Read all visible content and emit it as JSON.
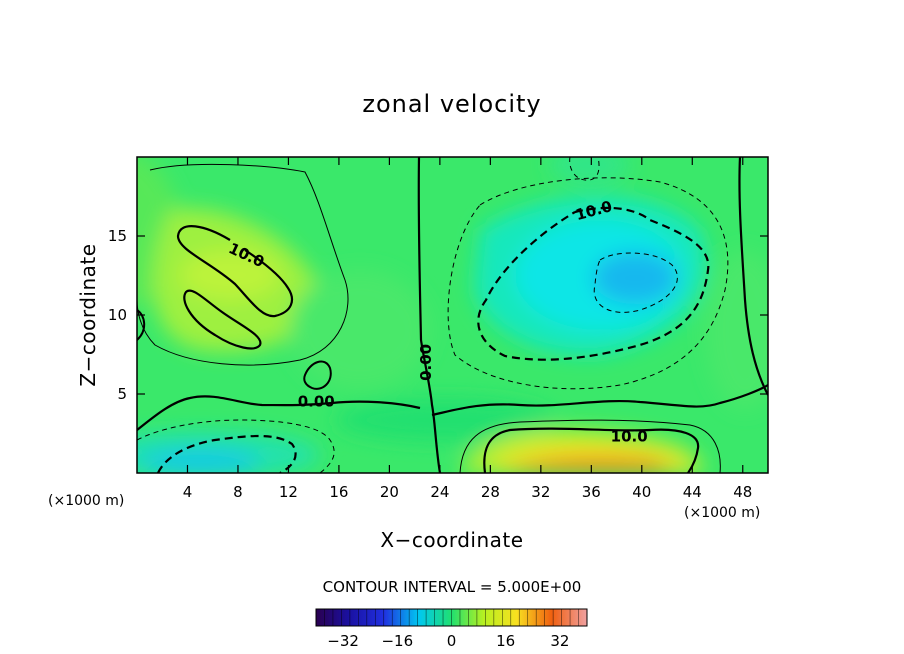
{
  "chart_data": {
    "type": "heatmap",
    "title": "zonal velocity",
    "xlabel": "X−coordinate",
    "ylabel": "Z−coordinate",
    "x_unit": "(×1000 m)",
    "y_unit": "(×1000 m)",
    "xlim": [
      0,
      50
    ],
    "ylim": [
      0,
      20
    ],
    "x_ticks": [
      4,
      8,
      12,
      16,
      20,
      24,
      28,
      32,
      36,
      40,
      44,
      48
    ],
    "y_ticks": [
      5,
      10,
      15
    ],
    "contour_interval_text": "CONTOUR INTERVAL = 5.000E+00",
    "colorbar": {
      "range": [
        -40,
        40
      ],
      "ticks": [
        {
          "value": -32,
          "label": "−32"
        },
        {
          "value": -16,
          "label": "−16"
        },
        {
          "value": 0,
          "label": "0"
        },
        {
          "value": 16,
          "label": "16"
        },
        {
          "value": 32,
          "label": "32"
        }
      ]
    },
    "contour_labels": [
      {
        "text": "10.0",
        "x": 8.5,
        "z": 13.5
      },
      {
        "text": "0.00",
        "x": 14.2,
        "z": 4.2
      },
      {
        "text": "0.00",
        "x": 23.3,
        "z": 7.0
      },
      {
        "text": "10.0",
        "x": 36.3,
        "z": 16.3
      },
      {
        "text": "10.0",
        "x": 39.0,
        "z": 2.0
      }
    ],
    "features": [
      {
        "name": "positive upper-left core",
        "x": 8,
        "z": 13.5,
        "value": 12
      },
      {
        "name": "negative upper-right core",
        "x": 39,
        "z": 12,
        "value": -20
      },
      {
        "name": "strong positive near surface",
        "x": 38,
        "z": 0.5,
        "value": 30
      },
      {
        "name": "negative lower-left patch",
        "x": 9,
        "z": 1,
        "value": -14
      }
    ]
  }
}
